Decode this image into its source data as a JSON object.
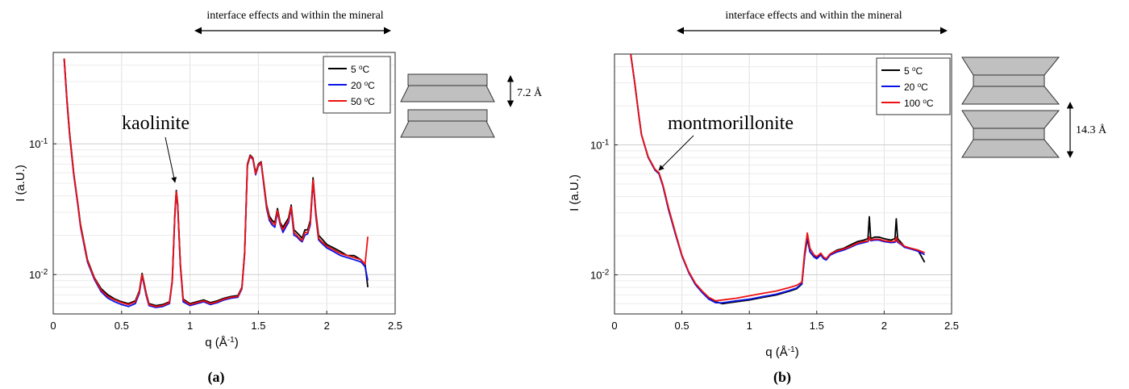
{
  "figure": {
    "captions": [
      "(a)",
      "(b)"
    ],
    "header_text": "interface effects and within the mineral",
    "diagrams": {
      "left_spacing": "7.2 Å",
      "right_spacing": "14.3 Å"
    }
  },
  "chart_data": [
    {
      "type": "line",
      "scale": "log-y",
      "title": "",
      "xlabel": "q (Å",
      "xlabel_sup": "-1",
      "ylabel": "I (a.U.)",
      "xlim": [
        0,
        2.5
      ],
      "ylim": [
        0.005,
        0.5
      ],
      "xticks": [
        0,
        0.5,
        1,
        1.5,
        2,
        2.5
      ],
      "xtick_labels": [
        "0",
        "0.5",
        "1",
        "1.5",
        "2",
        "2.5"
      ],
      "ytick_labels": [
        {
          "base": "10",
          "exp": "-1",
          "value": 0.1
        },
        {
          "base": "10",
          "exp": "-2",
          "value": 0.01
        }
      ],
      "grid": true,
      "legend_position": "top-right",
      "annotation": {
        "text": "kaolinite",
        "x": 0.9,
        "y": 0.042
      },
      "series": [
        {
          "name": "5 °C",
          "label_main": "5 ",
          "label_sup": "o",
          "label_unit": "C",
          "color": "#000000",
          "x": [
            0.08,
            0.1,
            0.12,
            0.15,
            0.18,
            0.2,
            0.25,
            0.3,
            0.35,
            0.4,
            0.45,
            0.5,
            0.55,
            0.6,
            0.63,
            0.65,
            0.68,
            0.7,
            0.75,
            0.8,
            0.85,
            0.87,
            0.89,
            0.9,
            0.91,
            0.93,
            0.95,
            1.0,
            1.05,
            1.1,
            1.15,
            1.2,
            1.25,
            1.3,
            1.35,
            1.38,
            1.4,
            1.42,
            1.44,
            1.46,
            1.48,
            1.5,
            1.52,
            1.54,
            1.56,
            1.58,
            1.6,
            1.62,
            1.64,
            1.66,
            1.68,
            1.7,
            1.72,
            1.74,
            1.76,
            1.78,
            1.8,
            1.82,
            1.84,
            1.86,
            1.88,
            1.9,
            1.92,
            1.94,
            1.96,
            2.0,
            2.05,
            2.1,
            2.15,
            2.2,
            2.25,
            2.28,
            2.3
          ],
          "y": [
            0.45,
            0.22,
            0.12,
            0.06,
            0.035,
            0.024,
            0.013,
            0.0095,
            0.0078,
            0.007,
            0.0065,
            0.0062,
            0.006,
            0.0063,
            0.0075,
            0.0102,
            0.0072,
            0.006,
            0.0058,
            0.0059,
            0.0062,
            0.009,
            0.03,
            0.044,
            0.035,
            0.012,
            0.0065,
            0.006,
            0.0062,
            0.0064,
            0.0061,
            0.0063,
            0.0066,
            0.0068,
            0.0069,
            0.008,
            0.015,
            0.07,
            0.082,
            0.078,
            0.06,
            0.07,
            0.073,
            0.05,
            0.034,
            0.028,
            0.026,
            0.025,
            0.032,
            0.025,
            0.023,
            0.025,
            0.027,
            0.034,
            0.022,
            0.021,
            0.02,
            0.019,
            0.022,
            0.022,
            0.026,
            0.055,
            0.03,
            0.02,
            0.019,
            0.017,
            0.016,
            0.015,
            0.014,
            0.014,
            0.013,
            0.012,
            0.008
          ]
        },
        {
          "name": "20 °C",
          "label_main": "20 ",
          "label_sup": "o",
          "label_unit": "C",
          "color": "#0b13e8",
          "x": [
            0.08,
            0.1,
            0.12,
            0.15,
            0.18,
            0.2,
            0.25,
            0.3,
            0.35,
            0.4,
            0.45,
            0.5,
            0.55,
            0.6,
            0.63,
            0.65,
            0.68,
            0.7,
            0.75,
            0.8,
            0.85,
            0.87,
            0.89,
            0.9,
            0.91,
            0.93,
            0.95,
            1.0,
            1.05,
            1.1,
            1.15,
            1.2,
            1.25,
            1.3,
            1.35,
            1.38,
            1.4,
            1.42,
            1.44,
            1.46,
            1.48,
            1.5,
            1.52,
            1.54,
            1.56,
            1.58,
            1.6,
            1.62,
            1.64,
            1.66,
            1.68,
            1.7,
            1.72,
            1.74,
            1.76,
            1.78,
            1.8,
            1.82,
            1.84,
            1.86,
            1.88,
            1.9,
            1.92,
            1.94,
            1.96,
            2.0,
            2.05,
            2.1,
            2.15,
            2.2,
            2.25,
            2.28,
            2.3
          ],
          "y": [
            0.44,
            0.21,
            0.115,
            0.058,
            0.034,
            0.023,
            0.0125,
            0.0092,
            0.0074,
            0.0066,
            0.0062,
            0.0059,
            0.0057,
            0.006,
            0.0072,
            0.0098,
            0.0069,
            0.0058,
            0.0056,
            0.0057,
            0.006,
            0.0088,
            0.029,
            0.042,
            0.034,
            0.0115,
            0.0062,
            0.0058,
            0.006,
            0.0062,
            0.0059,
            0.0061,
            0.0064,
            0.0066,
            0.0067,
            0.0078,
            0.0145,
            0.068,
            0.08,
            0.076,
            0.058,
            0.068,
            0.071,
            0.048,
            0.032,
            0.026,
            0.024,
            0.023,
            0.03,
            0.024,
            0.021,
            0.023,
            0.025,
            0.032,
            0.02,
            0.0195,
            0.0185,
            0.0178,
            0.02,
            0.0205,
            0.024,
            0.052,
            0.028,
            0.0185,
            0.0175,
            0.016,
            0.015,
            0.014,
            0.0135,
            0.013,
            0.0125,
            0.0115,
            0.009
          ]
        },
        {
          "name": "50 °C",
          "label_main": "50 ",
          "label_sup": "o",
          "label_unit": "C",
          "color": "#ee1111",
          "x": [
            0.08,
            0.1,
            0.12,
            0.15,
            0.18,
            0.2,
            0.25,
            0.3,
            0.35,
            0.4,
            0.45,
            0.5,
            0.55,
            0.6,
            0.63,
            0.65,
            0.68,
            0.7,
            0.75,
            0.8,
            0.85,
            0.87,
            0.89,
            0.9,
            0.91,
            0.93,
            0.95,
            1.0,
            1.05,
            1.1,
            1.15,
            1.2,
            1.25,
            1.3,
            1.35,
            1.38,
            1.4,
            1.42,
            1.44,
            1.46,
            1.48,
            1.5,
            1.52,
            1.54,
            1.56,
            1.58,
            1.6,
            1.62,
            1.64,
            1.66,
            1.68,
            1.7,
            1.72,
            1.74,
            1.76,
            1.78,
            1.8,
            1.82,
            1.84,
            1.86,
            1.88,
            1.9,
            1.92,
            1.94,
            1.96,
            2.0,
            2.05,
            2.1,
            2.15,
            2.2,
            2.25,
            2.28,
            2.3
          ],
          "y": [
            0.45,
            0.215,
            0.118,
            0.059,
            0.035,
            0.0235,
            0.0128,
            0.0094,
            0.0076,
            0.0068,
            0.0064,
            0.0061,
            0.0059,
            0.0062,
            0.0074,
            0.01,
            0.0071,
            0.0059,
            0.0057,
            0.0058,
            0.0061,
            0.0089,
            0.0295,
            0.043,
            0.0345,
            0.0118,
            0.0064,
            0.0059,
            0.0061,
            0.0063,
            0.006,
            0.0062,
            0.0065,
            0.0067,
            0.0068,
            0.0079,
            0.0148,
            0.069,
            0.081,
            0.077,
            0.059,
            0.069,
            0.072,
            0.049,
            0.033,
            0.027,
            0.025,
            0.024,
            0.031,
            0.0245,
            0.022,
            0.024,
            0.026,
            0.033,
            0.021,
            0.02,
            0.019,
            0.0182,
            0.021,
            0.021,
            0.025,
            0.053,
            0.029,
            0.019,
            0.018,
            0.0165,
            0.0155,
            0.0145,
            0.014,
            0.0135,
            0.013,
            0.012,
            0.0195
          ]
        }
      ]
    },
    {
      "type": "line",
      "scale": "log-y",
      "title": "",
      "xlabel": "q (Å",
      "xlabel_sup": "-1",
      "ylabel": "I (a.U.)",
      "xlim": [
        0,
        2.5
      ],
      "ylim": [
        0.005,
        0.5
      ],
      "xticks": [
        0,
        0.5,
        1,
        1.5,
        2,
        2.5
      ],
      "xtick_labels": [
        "0",
        "0.5",
        "1",
        "1.5",
        "2",
        "2.5"
      ],
      "ytick_labels": [
        {
          "base": "10",
          "exp": "-1",
          "value": 0.1
        },
        {
          "base": "10",
          "exp": "-2",
          "value": 0.01
        }
      ],
      "grid": true,
      "legend_position": "top-right",
      "annotation": {
        "text": "montmorillonite",
        "x": 0.33,
        "y": 0.06
      },
      "series": [
        {
          "name": "5 °C",
          "label_main": "5 ",
          "label_sup": "o",
          "label_unit": "C",
          "color": "#000000",
          "x": [
            0.12,
            0.15,
            0.18,
            0.2,
            0.25,
            0.3,
            0.33,
            0.36,
            0.4,
            0.45,
            0.5,
            0.55,
            0.6,
            0.65,
            0.7,
            0.75,
            0.8,
            0.85,
            0.9,
            1.0,
            1.1,
            1.2,
            1.3,
            1.35,
            1.39,
            1.41,
            1.43,
            1.45,
            1.48,
            1.5,
            1.53,
            1.55,
            1.57,
            1.6,
            1.65,
            1.7,
            1.75,
            1.8,
            1.85,
            1.88,
            1.89,
            1.9,
            1.93,
            1.96,
            2.0,
            2.05,
            2.08,
            2.09,
            2.1,
            2.13,
            2.15,
            2.2,
            2.25,
            2.3
          ],
          "y": [
            0.5,
            0.3,
            0.17,
            0.12,
            0.08,
            0.064,
            0.06,
            0.048,
            0.032,
            0.021,
            0.014,
            0.0105,
            0.0085,
            0.0074,
            0.0066,
            0.0062,
            0.006,
            0.0061,
            0.0062,
            0.0064,
            0.0067,
            0.007,
            0.0075,
            0.0078,
            0.0085,
            0.014,
            0.019,
            0.015,
            0.0138,
            0.0135,
            0.0145,
            0.0135,
            0.0132,
            0.0145,
            0.0155,
            0.016,
            0.017,
            0.018,
            0.0185,
            0.019,
            0.028,
            0.019,
            0.0195,
            0.0195,
            0.019,
            0.0185,
            0.019,
            0.027,
            0.019,
            0.0175,
            0.0165,
            0.016,
            0.0155,
            0.0125
          ]
        },
        {
          "name": "20 °C",
          "label_main": "20 ",
          "label_sup": "o",
          "label_unit": "C",
          "color": "#0b13e8",
          "x": [
            0.12,
            0.15,
            0.18,
            0.2,
            0.25,
            0.3,
            0.33,
            0.36,
            0.4,
            0.45,
            0.5,
            0.55,
            0.6,
            0.65,
            0.7,
            0.75,
            0.8,
            0.85,
            0.9,
            1.0,
            1.1,
            1.2,
            1.3,
            1.35,
            1.39,
            1.41,
            1.43,
            1.45,
            1.48,
            1.5,
            1.53,
            1.55,
            1.57,
            1.6,
            1.65,
            1.7,
            1.75,
            1.8,
            1.85,
            1.88,
            1.89,
            1.9,
            1.93,
            1.96,
            2.0,
            2.05,
            2.08,
            2.09,
            2.1,
            2.13,
            2.15,
            2.2,
            2.25,
            2.3
          ],
          "y": [
            0.5,
            0.3,
            0.17,
            0.12,
            0.08,
            0.064,
            0.06,
            0.048,
            0.032,
            0.021,
            0.014,
            0.0104,
            0.0084,
            0.0073,
            0.0065,
            0.0061,
            0.0061,
            0.0062,
            0.0063,
            0.0065,
            0.0068,
            0.0071,
            0.0076,
            0.0079,
            0.0086,
            0.014,
            0.02,
            0.015,
            0.0137,
            0.0133,
            0.0142,
            0.0133,
            0.013,
            0.0142,
            0.015,
            0.0155,
            0.0163,
            0.0172,
            0.0177,
            0.018,
            0.019,
            0.0183,
            0.0185,
            0.0185,
            0.018,
            0.0177,
            0.0178,
            0.0185,
            0.0178,
            0.017,
            0.0163,
            0.0158,
            0.0152,
            0.0143
          ]
        },
        {
          "name": "100 °C",
          "label_main": "100 ",
          "label_sup": "o",
          "label_unit": "C",
          "color": "#ee1111",
          "x": [
            0.12,
            0.15,
            0.18,
            0.2,
            0.25,
            0.3,
            0.33,
            0.36,
            0.4,
            0.45,
            0.5,
            0.55,
            0.6,
            0.65,
            0.7,
            0.75,
            0.8,
            0.85,
            0.9,
            1.0,
            1.1,
            1.2,
            1.3,
            1.35,
            1.39,
            1.41,
            1.43,
            1.45,
            1.48,
            1.5,
            1.53,
            1.55,
            1.57,
            1.6,
            1.65,
            1.7,
            1.75,
            1.8,
            1.85,
            1.88,
            1.89,
            1.9,
            1.93,
            1.96,
            2.0,
            2.05,
            2.08,
            2.09,
            2.1,
            2.13,
            2.15,
            2.2,
            2.25,
            2.3
          ],
          "y": [
            0.5,
            0.3,
            0.17,
            0.12,
            0.081,
            0.065,
            0.061,
            0.049,
            0.033,
            0.0215,
            0.0142,
            0.0106,
            0.0086,
            0.0075,
            0.0067,
            0.0063,
            0.0064,
            0.0065,
            0.0066,
            0.0069,
            0.0072,
            0.0075,
            0.008,
            0.0083,
            0.0088,
            0.015,
            0.021,
            0.016,
            0.0142,
            0.0138,
            0.0147,
            0.0137,
            0.0133,
            0.0145,
            0.0153,
            0.0158,
            0.0165,
            0.0175,
            0.018,
            0.0182,
            0.0195,
            0.0185,
            0.0188,
            0.0188,
            0.0183,
            0.018,
            0.0181,
            0.0195,
            0.0181,
            0.0172,
            0.0166,
            0.016,
            0.0155,
            0.0148
          ]
        }
      ]
    }
  ]
}
